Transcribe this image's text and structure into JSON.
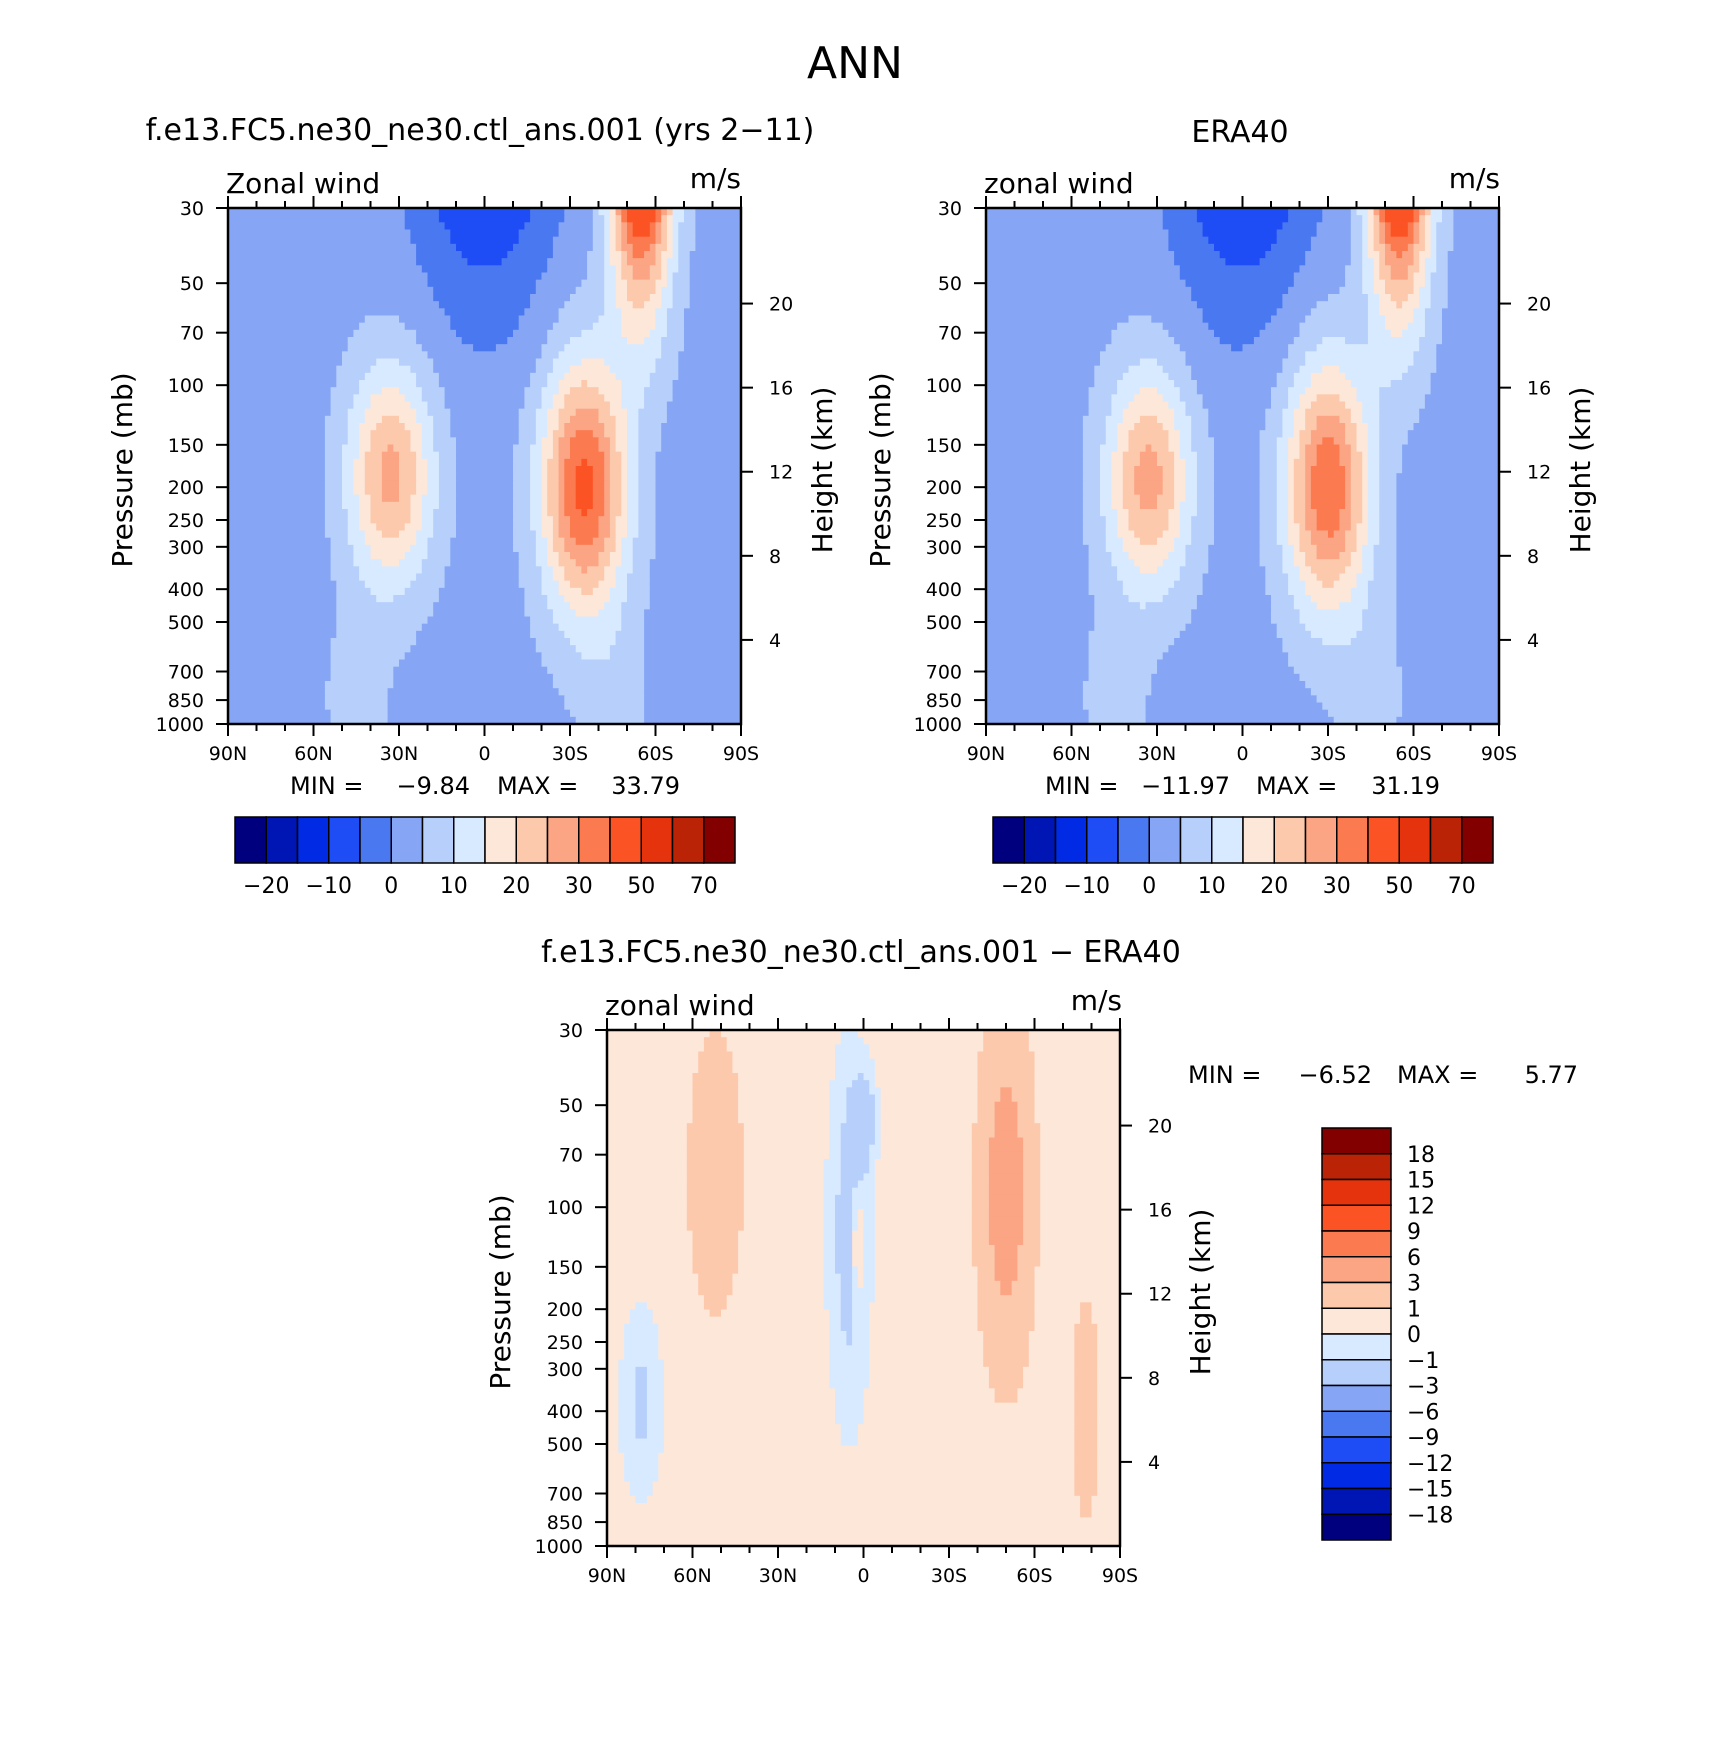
{
  "figure": {
    "main_title": "ANN"
  },
  "palettes": {
    "abs": [
      "#00007f",
      "#0016b4",
      "#002ae3",
      "#1f4df5",
      "#4a78f0",
      "#86a6f5",
      "#b6cffb",
      "#d8eaff",
      "#fde7d8",
      "#fcc9ad",
      "#fba585",
      "#fb7a4f",
      "#fc5324",
      "#e5330d",
      "#ba2306",
      "#820000"
    ],
    "diff": [
      "#820000",
      "#ba2306",
      "#e5330d",
      "#fc5324",
      "#fb7a4f",
      "#fba585",
      "#fcc9ad",
      "#fde7d8",
      "#d8eaff",
      "#b6cffb",
      "#86a6f5",
      "#4a78f0",
      "#1f4df5",
      "#002ae3",
      "#0016b4",
      "#00007f"
    ]
  },
  "chart_data": [
    {
      "type": "contour",
      "panel_id": "model",
      "title": "f.e13.FC5.ne30_ne30.ctl_ans.001 (yrs 2−11)",
      "field_label": "Zonal wind",
      "units": "m/s",
      "xlabel": "",
      "ylabel_left": "Pressure (mb)",
      "ylabel_right": "Height (km)",
      "x_ticks": [
        "90N",
        "60N",
        "30N",
        "0",
        "30S",
        "60S",
        "90S"
      ],
      "x_range": [
        90,
        -90
      ],
      "y_ticks": [
        30,
        50,
        70,
        100,
        150,
        200,
        250,
        300,
        400,
        500,
        700,
        850,
        1000
      ],
      "y_range": [
        1000,
        30
      ],
      "y_scale": "log",
      "height_ticks": [
        4,
        8,
        12,
        16,
        20
      ],
      "min_label": "MIN =",
      "min_value": "−9.84",
      "max_label": "MAX =",
      "max_value": "33.79",
      "colorbar": {
        "orientation": "horizontal",
        "labels": [
          "−20",
          "−10",
          "0",
          "10",
          "20",
          "30",
          "50",
          "70"
        ],
        "palette": "abs"
      },
      "jets": [
        {
          "lat": 33,
          "p": 185,
          "peak": 23.5
        },
        {
          "lat": -35,
          "p": 200,
          "peak": 33.79
        }
      ]
    },
    {
      "type": "contour",
      "panel_id": "obs",
      "title": "ERA40",
      "field_label": "zonal wind",
      "units": "m/s",
      "xlabel": "",
      "ylabel_left": "Pressure (mb)",
      "ylabel_right": "Height (km)",
      "x_ticks": [
        "90N",
        "60N",
        "30N",
        "0",
        "30S",
        "60S",
        "90S"
      ],
      "x_range": [
        90,
        -90
      ],
      "y_ticks": [
        30,
        50,
        70,
        100,
        150,
        200,
        250,
        300,
        400,
        500,
        700,
        850,
        1000
      ],
      "y_range": [
        1000,
        30
      ],
      "y_scale": "log",
      "height_ticks": [
        4,
        8,
        12,
        16,
        20
      ],
      "min_label": "MIN =",
      "min_value": "−11.97",
      "max_label": "MAX =",
      "max_value": "31.19",
      "colorbar": {
        "orientation": "horizontal",
        "labels": [
          "−20",
          "−10",
          "0",
          "10",
          "20",
          "30",
          "50",
          "70"
        ],
        "palette": "abs"
      },
      "jets": [
        {
          "lat": 33,
          "p": 190,
          "peak": 24.0
        },
        {
          "lat": -30,
          "p": 200,
          "peak": 31.19
        }
      ]
    },
    {
      "type": "contour",
      "panel_id": "diff",
      "title": "f.e13.FC5.ne30_ne30.ctl_ans.001 − ERA40",
      "field_label": "zonal wind",
      "units": "m/s",
      "xlabel": "",
      "ylabel_left": "Pressure (mb)",
      "ylabel_right": "Height (km)",
      "x_ticks": [
        "90N",
        "60N",
        "30N",
        "0",
        "30S",
        "60S",
        "90S"
      ],
      "x_range": [
        90,
        -90
      ],
      "y_ticks": [
        30,
        50,
        70,
        100,
        150,
        200,
        250,
        300,
        400,
        500,
        700,
        850,
        1000
      ],
      "y_range": [
        1000,
        30
      ],
      "y_scale": "log",
      "height_ticks": [
        4,
        8,
        12,
        16,
        20
      ],
      "min_label": "MIN =",
      "min_value": "−6.52",
      "max_label": "MAX =",
      "max_value": "5.77",
      "colorbar": {
        "orientation": "vertical",
        "labels": [
          "18",
          "15",
          "12",
          "9",
          "6",
          "3",
          "1",
          "0",
          "−1",
          "−3",
          "−6",
          "−9",
          "−12",
          "−15",
          "−18"
        ],
        "palette": "diff"
      }
    }
  ]
}
